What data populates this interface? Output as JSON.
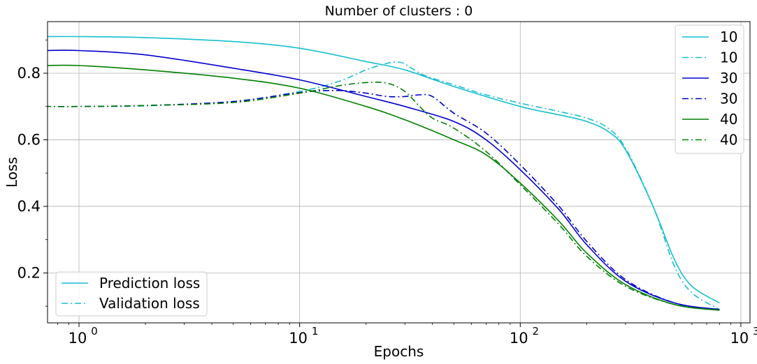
{
  "chart_data": {
    "type": "line",
    "title": "Number of clusters : 0",
    "xlabel": "Epochs",
    "ylabel": "Loss",
    "xscale": "log",
    "xlim": [
      0.72,
      1100
    ],
    "ylim": [
      0.05,
      0.955
    ],
    "grid": true,
    "x_ticks": [
      1,
      10,
      100,
      1000
    ],
    "x_tick_labels": [
      "10",
      "10",
      "10",
      "10"
    ],
    "x_tick_exponents": [
      "0",
      "1",
      "2",
      "3"
    ],
    "y_ticks": [
      0.2,
      0.4,
      0.6,
      0.8
    ],
    "y_tick_labels": [
      "0.2",
      "0.4",
      "0.6",
      "0.8"
    ],
    "series": [
      {
        "name": "10",
        "color": "#17becf",
        "style": "solid",
        "x": [
          0.7,
          1,
          2,
          5,
          10,
          20,
          30,
          50,
          100,
          150,
          200,
          250,
          300,
          400,
          500,
          600,
          800
        ],
        "y": [
          0.91,
          0.91,
          0.907,
          0.895,
          0.875,
          0.835,
          0.81,
          0.76,
          0.7,
          0.675,
          0.655,
          0.625,
          0.57,
          0.4,
          0.24,
          0.16,
          0.11
        ]
      },
      {
        "name": "10",
        "color": "#17becf",
        "style": "dashdot",
        "x": [
          0.7,
          1,
          2,
          5,
          10,
          15,
          20,
          25,
          28,
          30,
          35,
          40,
          50,
          70,
          100,
          150,
          200,
          250,
          300,
          400,
          500,
          600,
          800
        ],
        "y": [
          0.7,
          0.7,
          0.702,
          0.715,
          0.745,
          0.775,
          0.81,
          0.83,
          0.833,
          0.828,
          0.8,
          0.785,
          0.765,
          0.735,
          0.71,
          0.685,
          0.665,
          0.635,
          0.575,
          0.4,
          0.22,
          0.14,
          0.09
        ]
      },
      {
        "name": "30",
        "color": "#0000cc",
        "style": "solid",
        "x": [
          0.7,
          1,
          2,
          5,
          10,
          20,
          30,
          50,
          70,
          100,
          150,
          200,
          300,
          500,
          800
        ],
        "y": [
          0.868,
          0.868,
          0.855,
          0.815,
          0.78,
          0.73,
          0.7,
          0.655,
          0.6,
          0.51,
          0.39,
          0.285,
          0.175,
          0.11,
          0.09
        ]
      },
      {
        "name": "30",
        "color": "#0000cc",
        "style": "dashdot",
        "x": [
          0.7,
          1,
          2,
          5,
          10,
          15,
          20,
          25,
          30,
          35,
          40,
          50,
          70,
          100,
          150,
          200,
          300,
          500,
          800
        ],
        "y": [
          0.7,
          0.7,
          0.703,
          0.715,
          0.742,
          0.748,
          0.74,
          0.73,
          0.73,
          0.735,
          0.73,
          0.68,
          0.62,
          0.525,
          0.4,
          0.295,
          0.18,
          0.11,
          0.09
        ]
      },
      {
        "name": "40",
        "color": "#007f00",
        "style": "solid",
        "x": [
          0.7,
          1,
          2,
          5,
          10,
          20,
          30,
          50,
          70,
          100,
          150,
          200,
          300,
          500,
          800
        ],
        "y": [
          0.823,
          0.823,
          0.81,
          0.785,
          0.755,
          0.7,
          0.66,
          0.6,
          0.555,
          0.47,
          0.355,
          0.26,
          0.165,
          0.105,
          0.088
        ]
      },
      {
        "name": "40",
        "color": "#007f00",
        "style": "dashdot",
        "x": [
          0.7,
          1,
          2,
          5,
          10,
          15,
          20,
          25,
          30,
          35,
          40,
          50,
          70,
          100,
          150,
          200,
          300,
          500,
          800
        ],
        "y": [
          0.7,
          0.7,
          0.703,
          0.712,
          0.74,
          0.762,
          0.772,
          0.77,
          0.745,
          0.7,
          0.665,
          0.635,
          0.565,
          0.465,
          0.345,
          0.25,
          0.16,
          0.105,
          0.088
        ]
      }
    ],
    "legend_series": {
      "placement": "upper right",
      "entries": [
        "10",
        "10",
        "30",
        "30",
        "40",
        "40"
      ]
    },
    "legend_style": {
      "placement": "lower left",
      "entries": [
        {
          "label": "Prediction loss",
          "style": "solid",
          "color": "#17becf"
        },
        {
          "label": "Validation loss",
          "style": "dashdot",
          "color": "#17becf"
        }
      ]
    }
  }
}
